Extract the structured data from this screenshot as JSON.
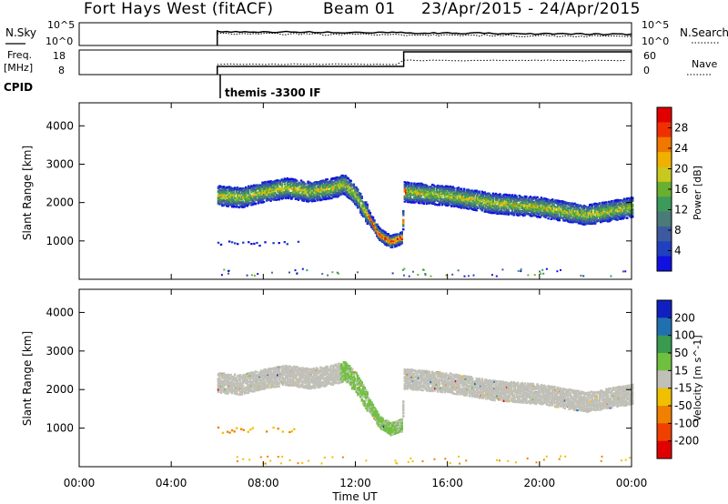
{
  "header": {
    "title": "Fort Hays West (fitACF)",
    "beam": "Beam 01",
    "dates": "23/Apr/2015 - 24/Apr/2015"
  },
  "noise_panel": {
    "left_label": "N.Sky",
    "left_ticks": [
      "10^5",
      "10^0"
    ],
    "right_ticks": [
      "10^5",
      "10^0"
    ],
    "right_label": "N.Search"
  },
  "freq_panel": {
    "left_label_1": "Freq.",
    "left_label_2": "[MHz]",
    "left_ticks": [
      "18",
      "8"
    ],
    "right_ticks": [
      "60",
      "0"
    ],
    "right_label": "Nave"
  },
  "cpid": {
    "label": "CPID",
    "program": "themis -3300 IF"
  },
  "chart_data": [
    {
      "type": "heatmap",
      "name": "power",
      "ylabel": "Slant Range [km]",
      "ylim": [
        0,
        4600
      ],
      "yticks": [
        1000,
        2000,
        3000,
        4000
      ],
      "xlim": [
        0,
        24
      ],
      "xtick_labels": [
        "00:00",
        "04:00",
        "08:00",
        "12:00",
        "16:00",
        "20:00",
        "00:00"
      ],
      "colorbar": {
        "label": "Power [dB]",
        "range": [
          0,
          32
        ],
        "ticks": [
          4,
          8,
          12,
          16,
          20,
          24,
          28
        ],
        "colors": [
          "#1010e0",
          "#2040c0",
          "#3d5aa0",
          "#4a7a7a",
          "#3c9a5a",
          "#6ab030",
          "#c8c820",
          "#f0b000",
          "#f07800",
          "#f03000",
          "#e00000"
        ]
      },
      "scatter_band": [
        {
          "t": 6.0,
          "r": 2200
        },
        {
          "t": 7.0,
          "r": 2150
        },
        {
          "t": 8.0,
          "r": 2300
        },
        {
          "t": 9.0,
          "r": 2400
        },
        {
          "t": 10.0,
          "r": 2300
        },
        {
          "t": 11.0,
          "r": 2400
        },
        {
          "t": 11.5,
          "r": 2500
        },
        {
          "t": 12.0,
          "r": 2200
        },
        {
          "t": 12.5,
          "r": 1700
        },
        {
          "t": 13.0,
          "r": 1200
        },
        {
          "t": 13.5,
          "r": 1000
        },
        {
          "t": 14.0,
          "r": 1100
        },
        {
          "t": 14.1,
          "r": 2300
        },
        {
          "t": 16.0,
          "r": 2200
        },
        {
          "t": 18.0,
          "r": 2000
        },
        {
          "t": 20.0,
          "r": 1900
        },
        {
          "t": 22.0,
          "r": 1700
        },
        {
          "t": 24.0,
          "r": 1900
        }
      ]
    },
    {
      "type": "heatmap",
      "name": "velocity",
      "ylabel": "Slant Range [km]",
      "ylim": [
        0,
        4600
      ],
      "yticks": [
        1000,
        2000,
        3000,
        4000
      ],
      "xlim": [
        0,
        24
      ],
      "xlabel": "Time UT",
      "xtick_labels": [
        "00:00",
        "04:00",
        "08:00",
        "12:00",
        "16:00",
        "20:00",
        "00:00"
      ],
      "colorbar": {
        "label": "Velocity [m s^-1]",
        "range": [
          -250,
          250
        ],
        "ticks": [
          200,
          100,
          50,
          15,
          -15,
          -50,
          -100,
          -200
        ],
        "colors": [
          "#1020c0",
          "#2070b0",
          "#3a9a50",
          "#70c040",
          "#c0c0b8",
          "#f0c000",
          "#f08000",
          "#f04000",
          "#e00000"
        ]
      },
      "dominant_color_description": "gray"
    }
  ]
}
